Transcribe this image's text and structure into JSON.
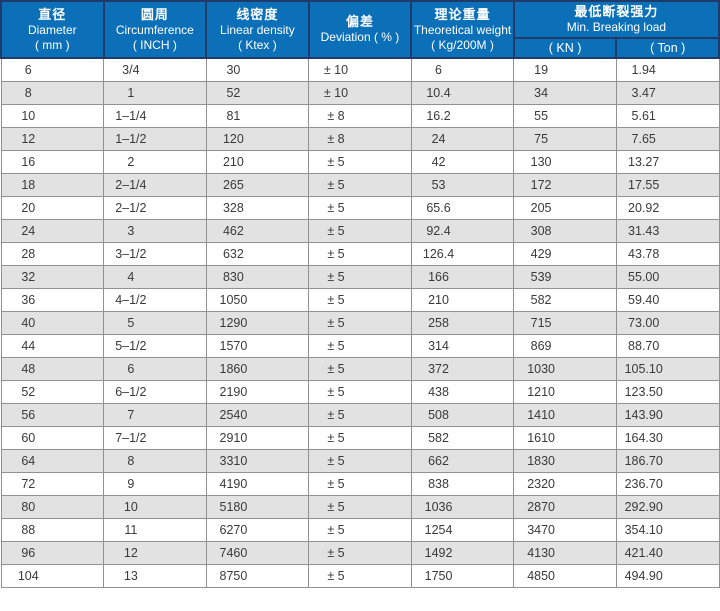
{
  "table": {
    "columns": [
      {
        "zh": "直径",
        "en": "Diameter",
        "unit": "( mm )"
      },
      {
        "zh": "圆周",
        "en": "Circumference",
        "unit": "( INCH )"
      },
      {
        "zh": "线密度",
        "en": "Linear density",
        "unit": "( Ktex )"
      },
      {
        "zh": "偏差",
        "en": "Deviation ( % )",
        "unit": ""
      },
      {
        "zh": "理论重量",
        "en": "Theoretical weight",
        "unit": "( Kg/200M )"
      }
    ],
    "breaking_load": {
      "zh": "最低断裂强力",
      "en": "Min. Breaking load",
      "sub_kn": "( KN )",
      "sub_ton": "( Ton )"
    },
    "rows": [
      [
        "6",
        "3/4",
        "30",
        "± 10",
        "6",
        "19",
        "1.94"
      ],
      [
        "8",
        "1",
        "52",
        "± 10",
        "10.4",
        "34",
        "3.47"
      ],
      [
        "10",
        "1–1/4",
        "81",
        "± 8",
        "16.2",
        "55",
        "5.61"
      ],
      [
        "12",
        "1–1/2",
        "120",
        "± 8",
        "24",
        "75",
        "7.65"
      ],
      [
        "16",
        "2",
        "210",
        "± 5",
        "42",
        "130",
        "13.27"
      ],
      [
        "18",
        "2–1/4",
        "265",
        "± 5",
        "53",
        "172",
        "17.55"
      ],
      [
        "20",
        "2–1/2",
        "328",
        "± 5",
        "65.6",
        "205",
        "20.92"
      ],
      [
        "24",
        "3",
        "462",
        "± 5",
        "92.4",
        "308",
        "31.43"
      ],
      [
        "28",
        "3–1/2",
        "632",
        "± 5",
        "126.4",
        "429",
        "43.78"
      ],
      [
        "32",
        "4",
        "830",
        "± 5",
        "166",
        "539",
        "55.00"
      ],
      [
        "36",
        "4–1/2",
        "1050",
        "± 5",
        "210",
        "582",
        "59.40"
      ],
      [
        "40",
        "5",
        "1290",
        "± 5",
        "258",
        "715",
        "73.00"
      ],
      [
        "44",
        "5–1/2",
        "1570",
        "± 5",
        "314",
        "869",
        "88.70"
      ],
      [
        "48",
        "6",
        "1860",
        "± 5",
        "372",
        "1030",
        "105.10"
      ],
      [
        "52",
        "6–1/2",
        "2190",
        "± 5",
        "438",
        "1210",
        "123.50"
      ],
      [
        "56",
        "7",
        "2540",
        "± 5",
        "508",
        "1410",
        "143.90"
      ],
      [
        "60",
        "7–1/2",
        "2910",
        "± 5",
        "582",
        "1610",
        "164.30"
      ],
      [
        "64",
        "8",
        "3310",
        "± 5",
        "662",
        "1830",
        "186.70"
      ],
      [
        "72",
        "9",
        "4190",
        "± 5",
        "838",
        "2320",
        "236.70"
      ],
      [
        "80",
        "10",
        "5180",
        "± 5",
        "1036",
        "2870",
        "292.90"
      ],
      [
        "88",
        "11",
        "6270",
        "± 5",
        "1254",
        "3470",
        "354.10"
      ],
      [
        "96",
        "12",
        "7460",
        "± 5",
        "1492",
        "4130",
        "421.40"
      ],
      [
        "104",
        "13",
        "8750",
        "± 5",
        "1750",
        "4850",
        "494.90"
      ]
    ],
    "colors": {
      "header_bg": "#0c70b8",
      "header_border": "#203a69",
      "row_alt_bg": "#e2e2e2",
      "cell_border": "#919191",
      "text": "#3a3a3a"
    }
  }
}
